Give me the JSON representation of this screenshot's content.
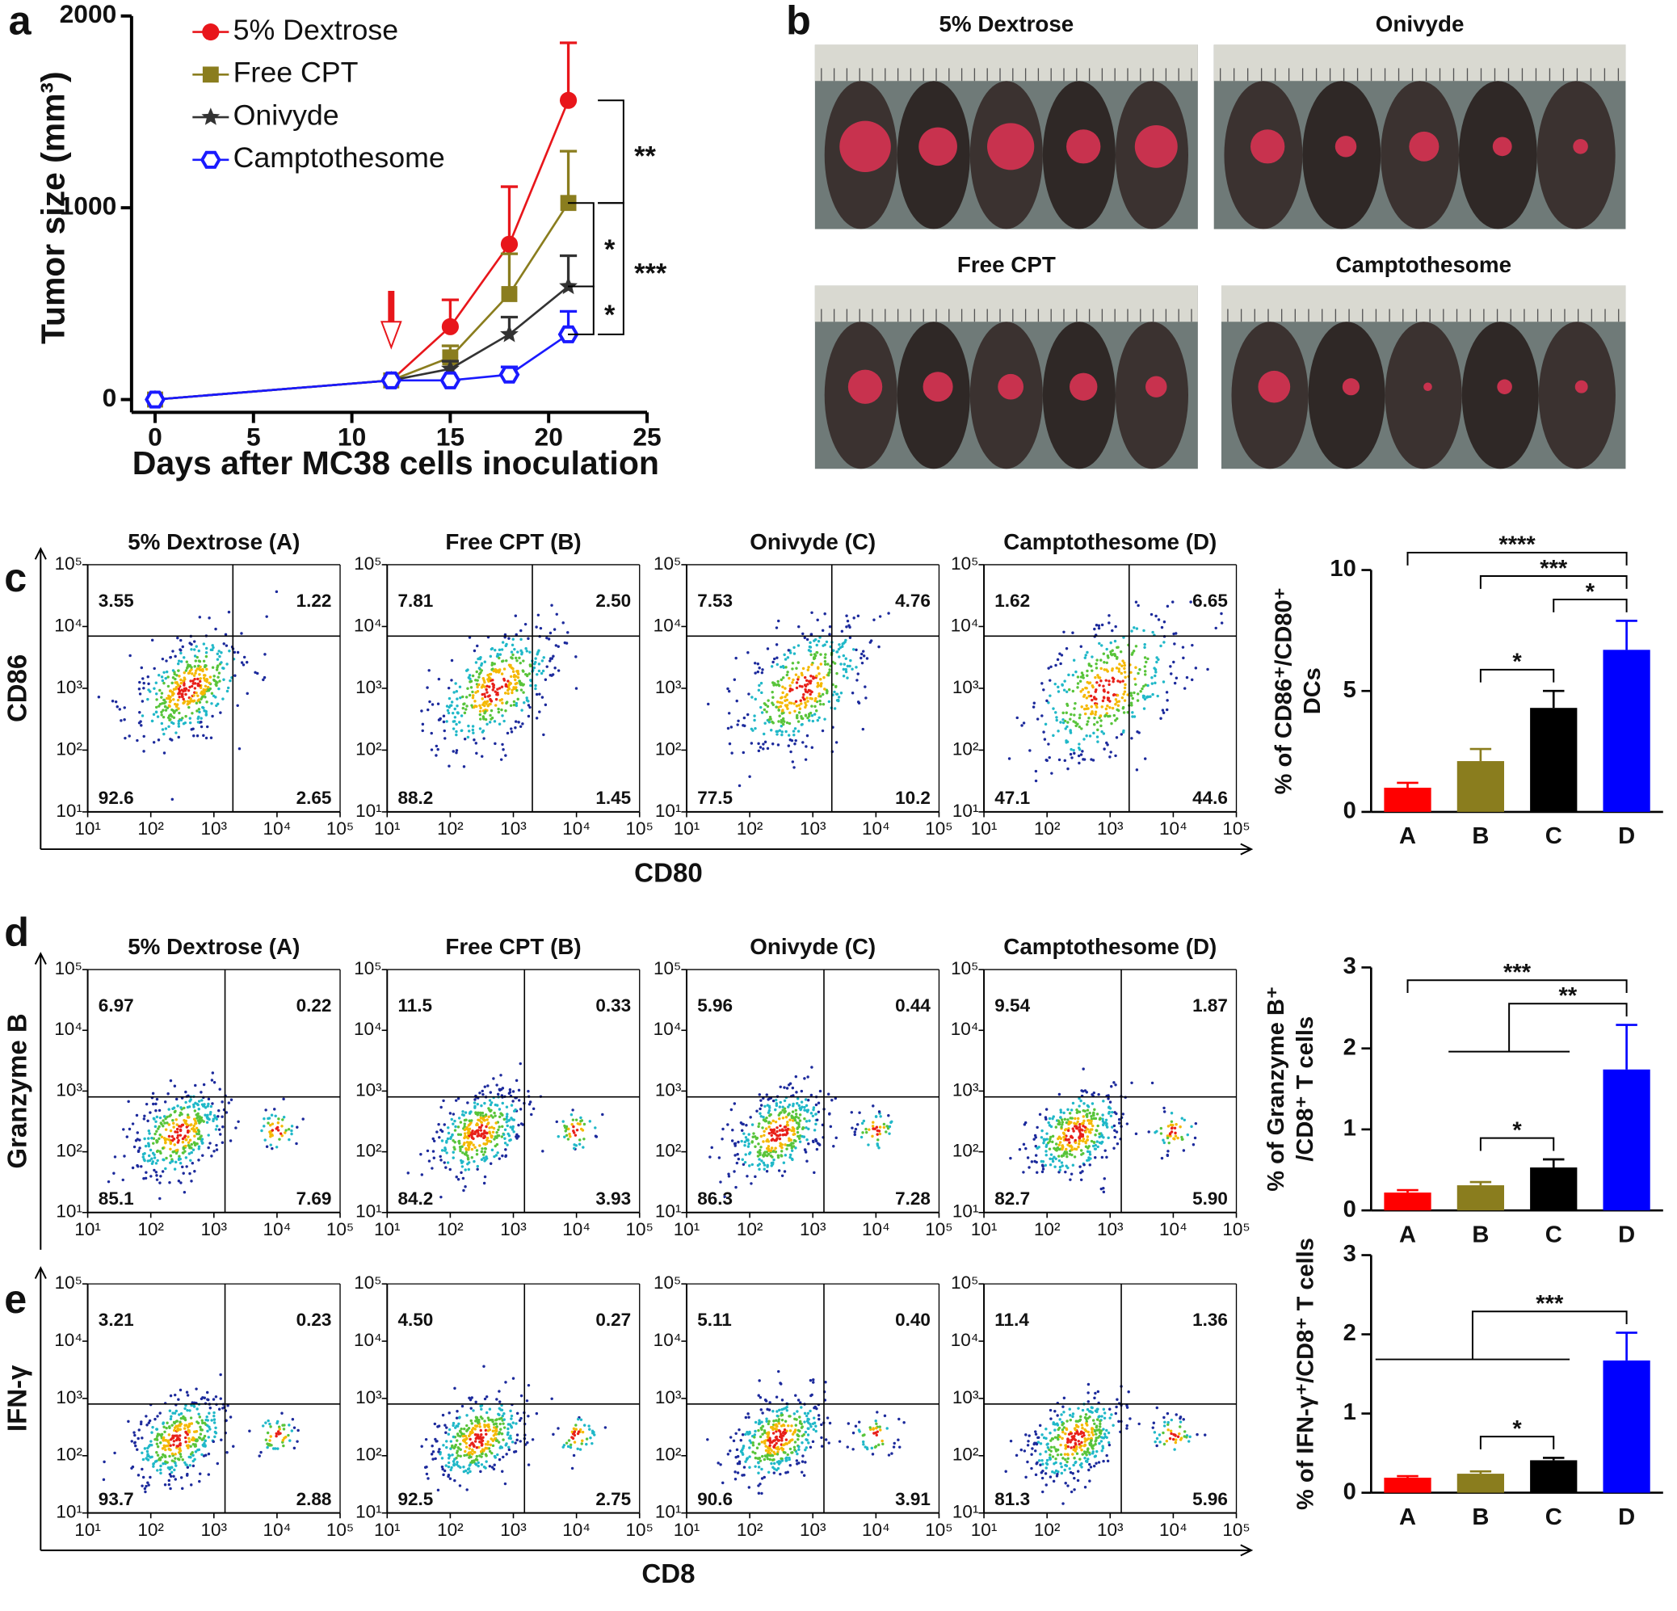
{
  "panel_labels": [
    "a",
    "b",
    "c",
    "d",
    "e"
  ],
  "photos": {
    "titles": [
      "5% Dextrose",
      "Onivyde",
      "Free CPT",
      "Camptothesome"
    ]
  },
  "chart_data": [
    {
      "type": "line",
      "xlabel": "Days after MC38 cells inoculation",
      "ylabel": "Tumor size (mm³)",
      "x": [
        0,
        12,
        15,
        18,
        21
      ],
      "xlim": [
        0,
        25
      ],
      "xticks": [
        0,
        5,
        10,
        15,
        20,
        25
      ],
      "ylim": [
        0,
        2000
      ],
      "yticks": [
        0,
        1000,
        2000
      ],
      "arrow_x": 12,
      "series": [
        {
          "name": "5% Dextrose",
          "color": "#e8161b",
          "marker": "circle",
          "values": [
            0,
            100,
            380,
            810,
            1560
          ],
          "errors": [
            0,
            0,
            140,
            300,
            300
          ]
        },
        {
          "name": "Free CPT",
          "color": "#8a7d1e",
          "marker": "square",
          "values": [
            0,
            100,
            220,
            550,
            1025
          ],
          "errors": [
            0,
            0,
            60,
            210,
            270
          ]
        },
        {
          "name": "Onivyde",
          "color": "#333333",
          "marker": "star",
          "values": [
            0,
            100,
            160,
            340,
            590
          ],
          "errors": [
            0,
            0,
            40,
            90,
            160
          ]
        },
        {
          "name": "Camptothesome",
          "color": "#1a1aff",
          "marker": "hexagon",
          "values": [
            0,
            100,
            100,
            130,
            340
          ],
          "errors": [
            0,
            0,
            0,
            40,
            120
          ]
        }
      ],
      "annotations": [
        {
          "text": "**",
          "from": 0,
          "to": 1
        },
        {
          "text": "*",
          "from": 1,
          "to": 2
        },
        {
          "text": "*",
          "from": 2,
          "to": 3
        },
        {
          "text": "***",
          "from": 1,
          "to": 3
        }
      ]
    },
    {
      "type": "flow",
      "titles": [
        "5% Dextrose (A)",
        "Free CPT (B)",
        "Onivyde (C)",
        "Camptothesome (D)"
      ],
      "xlabel": "CD80",
      "ylabel": "CD86",
      "log_scale": true,
      "xlim": [
        10,
        100000
      ],
      "ylim": [
        10,
        100000
      ],
      "xticks": [
        {
          "value": 10,
          "label": "10¹"
        },
        {
          "value": 100,
          "label": "10²"
        },
        {
          "value": 1000,
          "label": "10³"
        },
        {
          "value": 10000,
          "label": "10⁴"
        },
        {
          "value": 100000,
          "label": "10⁵"
        }
      ],
      "yticks": [
        {
          "value": 10,
          "label": "10¹"
        },
        {
          "value": 100,
          "label": "10²"
        },
        {
          "value": 1000,
          "label": "10³"
        },
        {
          "value": 10000,
          "label": "10⁴"
        },
        {
          "value": 100000,
          "label": "10⁵"
        }
      ],
      "gate": [
        2000,
        7000
      ],
      "quadrants": [
        [
          "3.55",
          "1.22",
          "92.6",
          "2.65"
        ],
        [
          "7.81",
          "2.50",
          "88.2",
          "1.45"
        ],
        [
          "7.53",
          "4.76",
          "77.5",
          "10.2"
        ],
        [
          "1.62",
          "6.65",
          "47.1",
          "44.6"
        ]
      ]
    },
    {
      "type": "bar",
      "categories": [
        "A",
        "B",
        "C",
        "D"
      ],
      "values": [
        1.0,
        2.1,
        4.3,
        6.7
      ],
      "errors": [
        0.2,
        0.5,
        0.7,
        1.2
      ],
      "colors": [
        "#ff0000",
        "#8a7d1e",
        "#000000",
        "#0000ff"
      ],
      "ylim": [
        0,
        10
      ],
      "yticks": [
        0,
        5,
        10
      ],
      "ylabel": [
        "% of CD86⁺/CD80⁺",
        "DCs"
      ],
      "annotations": [
        {
          "text": "****",
          "from": 0,
          "to": 3
        },
        {
          "text": "***",
          "from": 1,
          "to": 3
        },
        {
          "text": "*",
          "from": 2,
          "to": 3
        },
        {
          "text": "*",
          "from": 1,
          "to": 2
        }
      ]
    },
    {
      "type": "flow",
      "titles": [
        "5% Dextrose (A)",
        "Free CPT (B)",
        "Onivyde (C)",
        "Camptothesome (D)"
      ],
      "ylabel": "Granzyme B",
      "log_scale": true,
      "xlim": [
        10,
        100000
      ],
      "ylim": [
        10,
        100000
      ],
      "xticks": [
        {
          "value": 10,
          "label": "10¹"
        },
        {
          "value": 100,
          "label": "10²"
        },
        {
          "value": 1000,
          "label": "10³"
        },
        {
          "value": 10000,
          "label": "10⁴"
        },
        {
          "value": 100000,
          "label": "10⁵"
        }
      ],
      "yticks": [
        {
          "value": 10,
          "label": "10¹"
        },
        {
          "value": 100,
          "label": "10²"
        },
        {
          "value": 1000,
          "label": "10³"
        },
        {
          "value": 10000,
          "label": "10⁴"
        },
        {
          "value": 100000,
          "label": "10⁵"
        }
      ],
      "gate": [
        1500,
        800
      ],
      "quadrants": [
        [
          "6.97",
          "0.22",
          "85.1",
          "7.69"
        ],
        [
          "11.5",
          "0.33",
          "84.2",
          "3.93"
        ],
        [
          "5.96",
          "0.44",
          "86.3",
          "7.28"
        ],
        [
          "9.54",
          "1.87",
          "82.7",
          "5.90"
        ]
      ]
    },
    {
      "type": "bar",
      "categories": [
        "A",
        "B",
        "C",
        "D"
      ],
      "values": [
        0.22,
        0.31,
        0.53,
        1.74
      ],
      "errors": [
        0.03,
        0.04,
        0.1,
        0.55
      ],
      "colors": [
        "#ff0000",
        "#8a7d1e",
        "#000000",
        "#0000ff"
      ],
      "ylim": [
        0,
        3
      ],
      "yticks": [
        0,
        1,
        2,
        3
      ],
      "ylabel": [
        "% of Granzyme B⁺",
        "/CD8⁺ T cells"
      ],
      "annotations": [
        {
          "text": "***",
          "from": 0,
          "to": 3
        },
        {
          "text": "**",
          "from": [
            1,
            2
          ],
          "to": 3
        },
        {
          "text": "*",
          "from": 1,
          "to": 2
        }
      ]
    },
    {
      "type": "flow",
      "xlabel": "CD8",
      "ylabel": "IFN-γ",
      "log_scale": true,
      "xlim": [
        10,
        100000
      ],
      "ylim": [
        10,
        100000
      ],
      "xticks": [
        {
          "value": 10,
          "label": "10¹"
        },
        {
          "value": 100,
          "label": "10²"
        },
        {
          "value": 1000,
          "label": "10³"
        },
        {
          "value": 10000,
          "label": "10⁴"
        },
        {
          "value": 100000,
          "label": "10⁵"
        }
      ],
      "yticks": [
        {
          "value": 10,
          "label": "10¹"
        },
        {
          "value": 100,
          "label": "10²"
        },
        {
          "value": 1000,
          "label": "10³"
        },
        {
          "value": 10000,
          "label": "10⁴"
        },
        {
          "value": 100000,
          "label": "10⁵"
        }
      ],
      "gate": [
        1500,
        800
      ],
      "quadrants": [
        [
          "3.21",
          "0.23",
          "93.7",
          "2.88"
        ],
        [
          "4.50",
          "0.27",
          "92.5",
          "2.75"
        ],
        [
          "5.11",
          "0.40",
          "90.6",
          "3.91"
        ],
        [
          "11.4",
          "1.36",
          "81.3",
          "5.96"
        ]
      ]
    },
    {
      "type": "bar",
      "categories": [
        "A",
        "B",
        "C",
        "D"
      ],
      "values": [
        0.19,
        0.24,
        0.41,
        1.67
      ],
      "errors": [
        0.02,
        0.03,
        0.03,
        0.35
      ],
      "colors": [
        "#ff0000",
        "#8a7d1e",
        "#000000",
        "#0000ff"
      ],
      "ylim": [
        0,
        3
      ],
      "yticks": [
        0,
        1,
        2,
        3
      ],
      "ylabel": [
        "% of IFN-γ⁺/CD8⁺ T cells"
      ],
      "annotations": [
        {
          "text": "***",
          "from": [
            0,
            2
          ],
          "to": 3
        },
        {
          "text": "*",
          "from": 1,
          "to": 2
        }
      ]
    }
  ]
}
